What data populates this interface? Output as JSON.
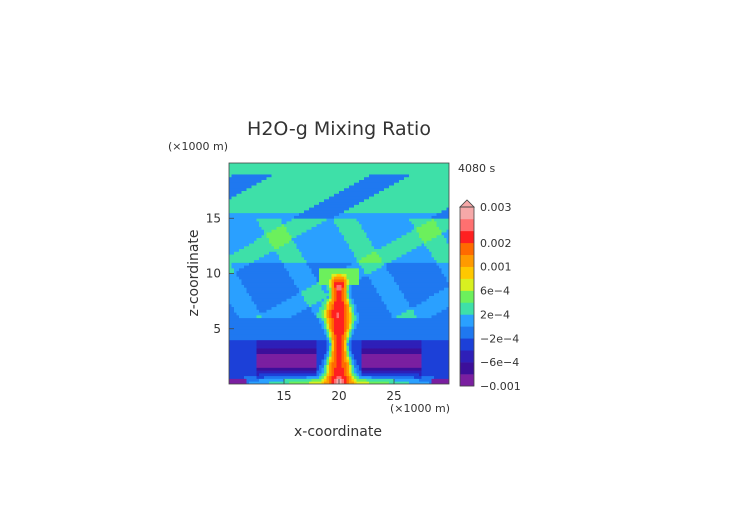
{
  "chart_data": {
    "type": "heatmap",
    "title": "H2O-g Mixing Ratio",
    "time_label": "4080 s",
    "xlabel": "x-coordinate",
    "ylabel": "z-coordinate",
    "x_units": "(×1000 m)",
    "y_units": "(×1000 m)",
    "xlim": [
      10,
      30
    ],
    "ylim": [
      0,
      20
    ],
    "x_ticks": [
      15,
      20,
      25
    ],
    "x_tick_labels": [
      "15",
      "20",
      "25"
    ],
    "y_ticks": [
      5,
      10,
      15
    ],
    "y_tick_labels": [
      "5",
      "10",
      "15"
    ],
    "grid": false,
    "colorbar": {
      "levels": [
        -0.001,
        -0.0008,
        -0.0006,
        -0.0004,
        -0.0002,
        0,
        0.0002,
        0.0004,
        0.0006,
        0.0008,
        0.001,
        0.0015,
        0.002,
        0.0025,
        0.003
      ],
      "colors": [
        "#7a1fa0",
        "#3c0f9a",
        "#2e1fb8",
        "#1c40d8",
        "#1f78f0",
        "#2aa0ff",
        "#3ee0a8",
        "#6cf05c",
        "#d8f020",
        "#ffc800",
        "#ff9a00",
        "#ff6a00",
        "#ff2020",
        "#ff7070",
        "#f6a8a8"
      ],
      "tick_labels": [
        {
          "value": -0.001,
          "label": "−0.001"
        },
        {
          "value": -0.0006,
          "label": "−6e−4"
        },
        {
          "value": -0.0002,
          "label": "−2e−4"
        },
        {
          "value": 0.0002,
          "label": "2e−4"
        },
        {
          "value": 0.0006,
          "label": "6e−4"
        },
        {
          "value": 0.001,
          "label": "0.001"
        },
        {
          "value": 0.002,
          "label": "0.002"
        },
        {
          "value": 0.003,
          "label": "0.003"
        }
      ]
    }
  }
}
